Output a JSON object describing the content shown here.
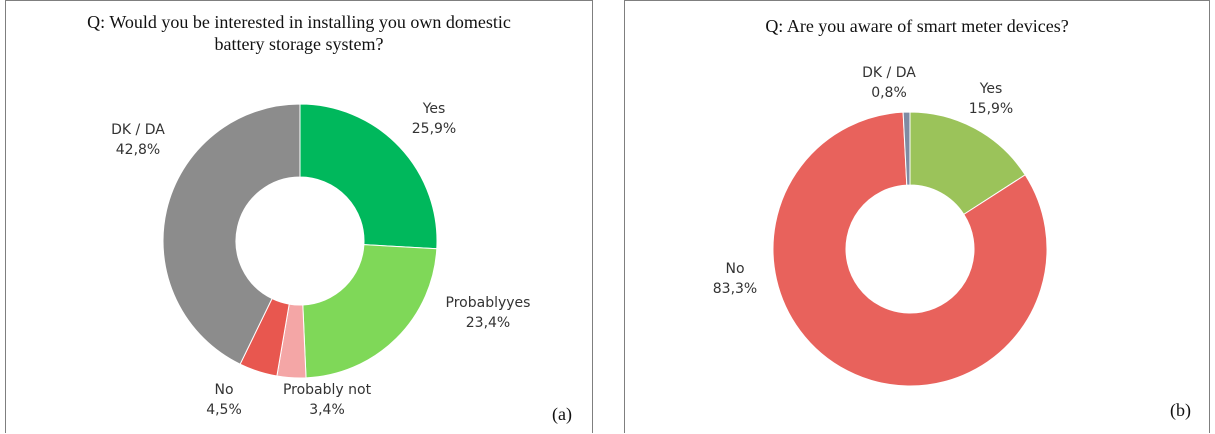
{
  "chart_data": [
    {
      "type": "pie",
      "donut": true,
      "title": "Q: Would you be interested in installing you own domestic battery storage system?",
      "title_lines": [
        "Q: Would you be interested in installing you own domestic",
        "battery storage system?"
      ],
      "panel_label": "(a)",
      "slices": [
        {
          "name": "Yes",
          "value": 25.9,
          "label": "25,9%",
          "color": "#00b85c"
        },
        {
          "name": "Probably yes",
          "display_name": "Probablyyes",
          "value": 23.4,
          "label": "23,4%",
          "color": "#7fd858"
        },
        {
          "name": "Probably not",
          "display_name": "Probably not",
          "value": 3.4,
          "label": "3,4%",
          "color": "#f4a6a6"
        },
        {
          "name": "No",
          "display_name": "No",
          "value": 4.5,
          "label": "4,5%",
          "color": "#e8574f"
        },
        {
          "name": "DK / DA",
          "display_name": "DK / DA",
          "value": 42.8,
          "label": "42,8%",
          "color": "#8c8c8c"
        }
      ]
    },
    {
      "type": "pie",
      "donut": true,
      "title": "Q: Are you aware of smart meter devices?",
      "title_lines": [
        "Q: Are you aware of smart meter devices?"
      ],
      "panel_label": "(b)",
      "slices": [
        {
          "name": "Yes",
          "display_name": "Yes",
          "value": 15.9,
          "label": "15,9%",
          "color": "#9bc35a"
        },
        {
          "name": "No",
          "display_name": "No",
          "value": 83.3,
          "label": "83,3%",
          "color": "#e8625c"
        },
        {
          "name": "DK / DA",
          "display_name": "DK / DA",
          "value": 0.8,
          "label": "0,8%",
          "color": "#7f8ba3"
        }
      ]
    }
  ]
}
